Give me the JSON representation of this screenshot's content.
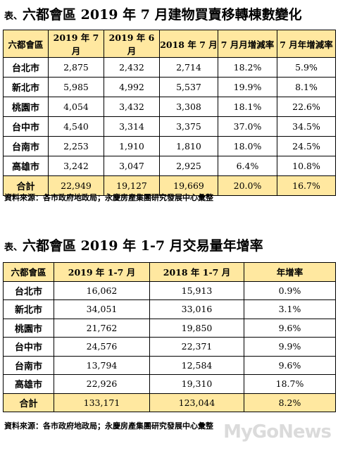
{
  "table1": {
    "prefix": "表、",
    "title": "六都會區 2019 年 7 月建物買賣移轉棟數變化",
    "headers": [
      "六都會區",
      "2019 年 7 月",
      "2019 年 6 月",
      "2018 年 7 月",
      "7 月月增減率",
      "7 月年增減率"
    ],
    "rows": [
      [
        "台北市",
        "2,875",
        "2,432",
        "2,714",
        "18.2%",
        "5.9%"
      ],
      [
        "新北市",
        "5,985",
        "4,992",
        "5,537",
        "19.9%",
        "8.1%"
      ],
      [
        "桃園市",
        "4,054",
        "3,432",
        "3,308",
        "18.1%",
        "22.6%"
      ],
      [
        "台中市",
        "4,540",
        "3,314",
        "3,375",
        "37.0%",
        "34.5%"
      ],
      [
        "台南市",
        "2,253",
        "1,910",
        "1,810",
        "18.0%",
        "24.5%"
      ],
      [
        "高雄市",
        "3,242",
        "3,047",
        "2,925",
        "6.4%",
        "10.8%"
      ]
    ],
    "total": [
      "合計",
      "22,949",
      "19,127",
      "19,669",
      "20.0%",
      "16.7%"
    ],
    "source": "資料來源：各市政府地政局；永慶房產集團研究發展中心彙整"
  },
  "table2": {
    "prefix": "表、",
    "title": "六都會區 2019 年 1-7 月交易量年增率",
    "headers": [
      "六都會區",
      "2019 年 1-7 月",
      "2018 年 1-7 月",
      "年增率"
    ],
    "rows": [
      [
        "台北市",
        "16,062",
        "15,913",
        "0.9%"
      ],
      [
        "新北市",
        "34,051",
        "33,016",
        "3.1%"
      ],
      [
        "桃園市",
        "21,762",
        "19,850",
        "9.6%"
      ],
      [
        "台中市",
        "24,576",
        "22,371",
        "9.9%"
      ],
      [
        "台南市",
        "13,794",
        "12,584",
        "9.6%"
      ],
      [
        "高雄市",
        "22,926",
        "19,310",
        "18.7%"
      ]
    ],
    "total": [
      "合計",
      "133,171",
      "123,044",
      "8.2%"
    ],
    "source": "資料來源：各市政府地政局；永慶房產集團研究發展中心彙整"
  },
  "watermark": "MyGoNews"
}
